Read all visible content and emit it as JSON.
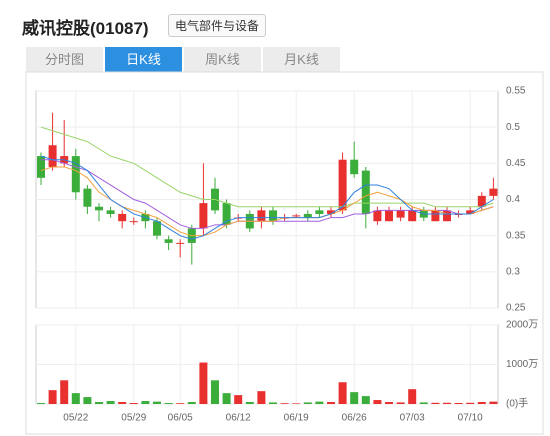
{
  "header": {
    "title": "威讯控股(01087)",
    "tag": "电气部件与设备"
  },
  "tabs": [
    "分时图",
    "日K线",
    "周K线",
    "月K线"
  ],
  "active_tab": 1,
  "chart_data": {
    "type": "candlestick",
    "categories": [
      null,
      null,
      null,
      "05/22",
      null,
      null,
      null,
      null,
      "05/29",
      null,
      null,
      null,
      "06/05",
      null,
      null,
      null,
      null,
      "06/12",
      null,
      null,
      null,
      null,
      "06/19",
      null,
      null,
      null,
      null,
      "06/26",
      null,
      null,
      null,
      null,
      "07/03",
      null,
      null,
      null,
      null,
      "07/10",
      null,
      null
    ],
    "open": [
      0.46,
      0.445,
      0.45,
      0.46,
      0.415,
      0.39,
      0.385,
      0.37,
      0.37,
      0.38,
      0.37,
      0.345,
      0.34,
      0.36,
      0.36,
      0.415,
      0.395,
      0.375,
      0.38,
      0.37,
      0.385,
      0.375,
      0.378,
      0.38,
      0.385,
      0.38,
      0.385,
      0.455,
      0.44,
      0.37,
      0.37,
      0.375,
      0.37,
      0.385,
      0.37,
      0.37,
      0.38,
      0.38,
      0.39,
      0.405
    ],
    "high": [
      0.465,
      0.52,
      0.51,
      0.47,
      0.42,
      0.395,
      0.39,
      0.385,
      0.375,
      0.385,
      0.375,
      0.35,
      0.345,
      0.365,
      0.45,
      0.43,
      0.4,
      0.38,
      0.385,
      0.39,
      0.39,
      0.38,
      0.38,
      0.385,
      0.39,
      0.39,
      0.465,
      0.48,
      0.445,
      0.39,
      0.39,
      0.39,
      0.39,
      0.39,
      0.39,
      0.39,
      0.385,
      0.39,
      0.41,
      0.43
    ],
    "low": [
      0.42,
      0.44,
      0.445,
      0.4,
      0.38,
      0.37,
      0.375,
      0.36,
      0.365,
      0.36,
      0.345,
      0.33,
      0.32,
      0.31,
      0.35,
      0.38,
      0.36,
      0.37,
      0.355,
      0.36,
      0.365,
      0.37,
      0.375,
      0.37,
      0.375,
      0.375,
      0.38,
      0.43,
      0.36,
      0.365,
      0.37,
      0.37,
      0.37,
      0.37,
      0.37,
      0.37,
      0.375,
      0.38,
      0.385,
      0.4
    ],
    "close": [
      0.43,
      0.475,
      0.46,
      0.41,
      0.39,
      0.385,
      0.38,
      0.38,
      0.37,
      0.37,
      0.35,
      0.34,
      0.34,
      0.34,
      0.395,
      0.385,
      0.365,
      0.375,
      0.36,
      0.385,
      0.37,
      0.375,
      0.378,
      0.375,
      0.38,
      0.385,
      0.455,
      0.435,
      0.38,
      0.385,
      0.385,
      0.385,
      0.385,
      0.375,
      0.385,
      0.385,
      0.38,
      0.385,
      0.405,
      0.415
    ],
    "up_color": "#e8302f",
    "down_color": "#3aad3a",
    "ylim": [
      0.25,
      0.55
    ],
    "yticks": [
      0.25,
      0.3,
      0.35,
      0.4,
      0.45,
      0.5,
      0.55
    ],
    "series": [
      {
        "color": "#99d46a",
        "values": [
          0.5,
          0.495,
          0.49,
          0.485,
          0.48,
          0.47,
          0.46,
          0.455,
          0.45,
          0.44,
          0.43,
          0.42,
          0.41,
          0.405,
          0.4,
          0.4,
          0.395,
          0.39,
          0.39,
          0.39,
          0.39,
          0.39,
          0.39,
          0.39,
          0.39,
          0.39,
          0.39,
          0.395,
          0.395,
          0.395,
          0.395,
          0.395,
          0.395,
          0.395,
          0.39,
          0.39,
          0.39,
          0.39,
          0.39,
          0.395
        ]
      },
      {
        "color": "#a15ee0",
        "values": [
          0.455,
          0.455,
          0.45,
          0.445,
          0.44,
          0.43,
          0.42,
          0.41,
          0.4,
          0.395,
          0.385,
          0.375,
          0.365,
          0.36,
          0.36,
          0.365,
          0.365,
          0.37,
          0.37,
          0.37,
          0.37,
          0.37,
          0.37,
          0.37,
          0.37,
          0.375,
          0.375,
          0.38,
          0.38,
          0.385,
          0.385,
          0.385,
          0.385,
          0.385,
          0.385,
          0.385,
          0.38,
          0.38,
          0.385,
          0.39
        ]
      },
      {
        "color": "#f0a23c",
        "values": [
          0.44,
          0.445,
          0.445,
          0.44,
          0.43,
          0.41,
          0.4,
          0.39,
          0.385,
          0.38,
          0.375,
          0.365,
          0.355,
          0.35,
          0.35,
          0.355,
          0.365,
          0.37,
          0.37,
          0.37,
          0.37,
          0.375,
          0.375,
          0.375,
          0.375,
          0.38,
          0.385,
          0.395,
          0.405,
          0.41,
          0.405,
          0.4,
          0.39,
          0.385,
          0.385,
          0.38,
          0.38,
          0.38,
          0.385,
          0.39
        ]
      },
      {
        "color": "#2f80e0",
        "values": [
          0.46,
          0.455,
          0.455,
          0.45,
          0.44,
          0.42,
          0.4,
          0.39,
          0.38,
          0.375,
          0.37,
          0.36,
          0.35,
          0.345,
          0.35,
          0.36,
          0.37,
          0.375,
          0.375,
          0.375,
          0.375,
          0.375,
          0.375,
          0.375,
          0.375,
          0.38,
          0.39,
          0.41,
          0.42,
          0.42,
          0.415,
          0.4,
          0.385,
          0.38,
          0.38,
          0.38,
          0.38,
          0.38,
          0.39,
          0.4
        ]
      }
    ],
    "volume": {
      "values": [
        25,
        350,
        600,
        275,
        175,
        50,
        75,
        50,
        25,
        75,
        60,
        25,
        20,
        50,
        1050,
        600,
        275,
        225,
        50,
        325,
        40,
        20,
        15,
        40,
        60,
        50,
        550,
        300,
        200,
        100,
        50,
        40,
        375,
        40,
        30,
        30,
        25,
        30,
        50,
        60
      ],
      "ylim": [
        0,
        2000
      ],
      "yticks": [
        {
          "value": 0,
          "label": "(0)手"
        },
        {
          "value": 1000,
          "label": "1000万"
        },
        {
          "value": 2000,
          "label": "2000万"
        }
      ]
    },
    "grid": true
  }
}
